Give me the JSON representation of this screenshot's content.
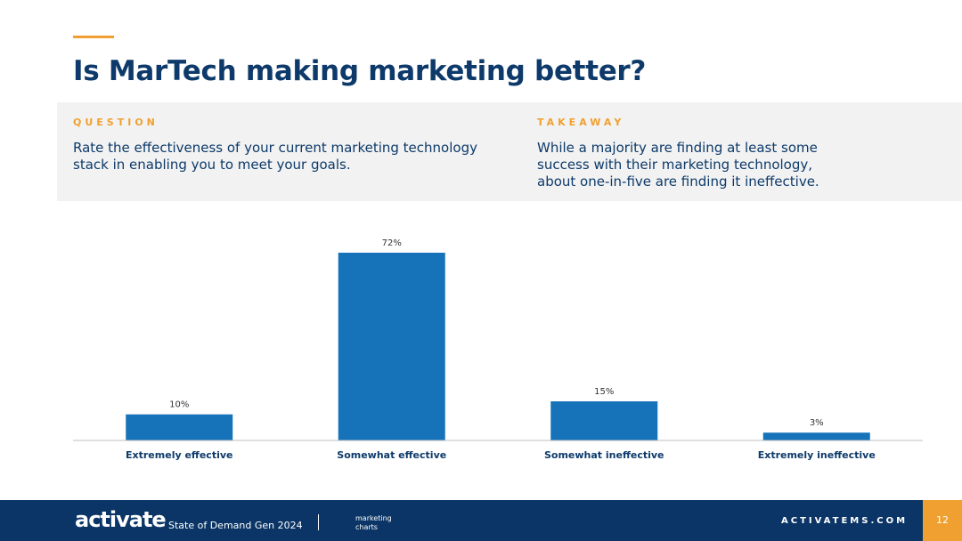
{
  "title": "Is MarTech making marketing better?",
  "question": {
    "label": "QUESTION",
    "text": "Rate the effectiveness of your current marketing technology stack in enabling you to meet your goals."
  },
  "takeaway": {
    "label": "TAKEAWAY",
    "text": "While a majority are finding at least some success with their marketing technology, about one-in-five are finding it ineffective."
  },
  "chart_data": {
    "type": "bar",
    "categories": [
      "Extremely effective",
      "Somewhat effective",
      "Somewhat ineffective",
      "Extremely ineffective"
    ],
    "values": [
      10,
      72,
      15,
      3
    ],
    "value_labels": [
      "10%",
      "72%",
      "15%",
      "3%"
    ],
    "color": "#1673b9"
  },
  "footer": {
    "brand": "activate",
    "report": "State of Demand Gen 2024",
    "partner": "marketing charts",
    "site": "ACTIVATEMS.COM",
    "page": "12"
  }
}
